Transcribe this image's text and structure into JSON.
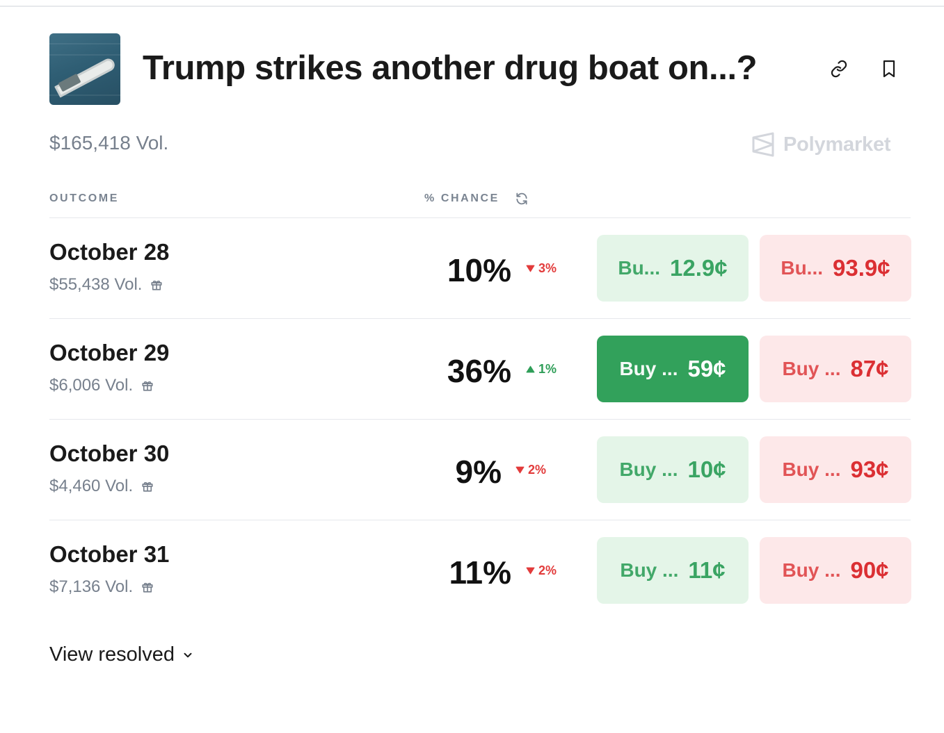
{
  "market": {
    "title": "Trump strikes another drug boat on...?",
    "volume": "$165,418 Vol.",
    "brand": "Polymarket"
  },
  "table": {
    "col_outcome": "OUTCOME",
    "col_chance": "% CHANCE"
  },
  "rows": [
    {
      "name": "October 28",
      "volume": "$55,438 Vol.",
      "pct": "10%",
      "delta": "3%",
      "delta_dir": "down",
      "yes_label": "Bu...",
      "yes_price": "12.9¢",
      "no_label": "Bu...",
      "no_price": "93.9¢"
    },
    {
      "name": "October 29",
      "volume": "$6,006 Vol.",
      "pct": "36%",
      "delta": "1%",
      "delta_dir": "up",
      "yes_label": "Buy ...",
      "yes_price": "59¢",
      "no_label": "Buy ...",
      "no_price": "87¢"
    },
    {
      "name": "October 30",
      "volume": "$4,460 Vol.",
      "pct": "9%",
      "delta": "2%",
      "delta_dir": "down",
      "yes_label": "Buy ...",
      "yes_price": "10¢",
      "no_label": "Buy ...",
      "no_price": "93¢"
    },
    {
      "name": "October 31",
      "volume": "$7,136 Vol.",
      "pct": "11%",
      "delta": "2%",
      "delta_dir": "down",
      "yes_label": "Buy ...",
      "yes_price": "11¢",
      "no_label": "Buy ...",
      "no_price": "90¢"
    }
  ],
  "footer": {
    "view_resolved": "View resolved"
  },
  "colors": {
    "yes_bg": "#e4f5e8",
    "yes_active_bg": "#32a15b",
    "no_bg": "#fde8e9",
    "down": "#e23b3b",
    "up": "#2f9e58"
  },
  "icons": [
    "link-icon",
    "bookmark-icon",
    "polymarket-logo-icon",
    "refresh-icon",
    "gift-icon",
    "triangle-down-icon",
    "triangle-up-icon",
    "chevron-down-icon"
  ]
}
